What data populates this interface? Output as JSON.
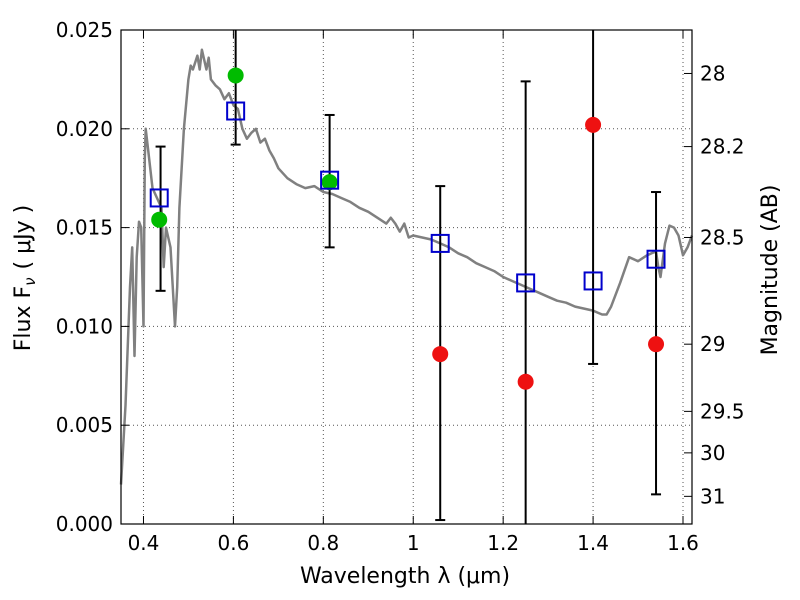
{
  "chart_data": {
    "type": "scatter",
    "xlabel": "Wavelength  λ (μm)",
    "ylabel": "Flux  F",
    "ylabel_sub": "ν",
    "ylabel_unit": "( μJy )",
    "y2label": "Magnitude (AB)",
    "xlim": [
      0.35,
      1.62
    ],
    "ylim": [
      0.0,
      0.025
    ],
    "grid": true,
    "x_ticks": [
      0.4,
      0.6,
      0.8,
      1.0,
      1.2,
      1.4,
      1.6
    ],
    "x_tick_labels": [
      "0.4",
      "0.6",
      "0.8",
      "1",
      "1.2",
      "1.4",
      "1.6"
    ],
    "y_ticks": [
      0.0,
      0.005,
      0.01,
      0.015,
      0.02,
      0.025
    ],
    "y_tick_labels": [
      "0.000",
      "0.005",
      "0.010",
      "0.015",
      "0.020",
      "0.025"
    ],
    "y2_tick_flux": [
      0.0228,
      0.0191,
      0.0145,
      0.0091,
      0.0057,
      0.0036,
      0.0014
    ],
    "y2_tick_labels": [
      "28",
      "28.2",
      "28.5",
      "29",
      "29.5",
      "30",
      "31"
    ],
    "colors": {
      "spectrum": "#808080",
      "model_box": "#0000cc",
      "detection": "#00bb00",
      "upper_limit": "#ee1111",
      "error_bar": "#000000",
      "grid": "#555555"
    },
    "series": [
      {
        "kind": "template-spectrum",
        "x": [
          0.35,
          0.36,
          0.37,
          0.375,
          0.38,
          0.385,
          0.39,
          0.395,
          0.4,
          0.403,
          0.405,
          0.41,
          0.42,
          0.43,
          0.44,
          0.445,
          0.45,
          0.46,
          0.47,
          0.475,
          0.48,
          0.49,
          0.5,
          0.505,
          0.51,
          0.52,
          0.525,
          0.53,
          0.54,
          0.545,
          0.55,
          0.56,
          0.57,
          0.58,
          0.59,
          0.6,
          0.61,
          0.62,
          0.63,
          0.64,
          0.65,
          0.66,
          0.67,
          0.68,
          0.69,
          0.7,
          0.72,
          0.74,
          0.76,
          0.78,
          0.8,
          0.82,
          0.84,
          0.86,
          0.88,
          0.9,
          0.92,
          0.94,
          0.95,
          0.96,
          0.97,
          0.98,
          0.99,
          1.0,
          1.02,
          1.04,
          1.06,
          1.08,
          1.1,
          1.12,
          1.14,
          1.16,
          1.18,
          1.2,
          1.22,
          1.24,
          1.26,
          1.28,
          1.3,
          1.32,
          1.34,
          1.36,
          1.38,
          1.4,
          1.41,
          1.42,
          1.43,
          1.44,
          1.46,
          1.48,
          1.5,
          1.52,
          1.54,
          1.545,
          1.55,
          1.56,
          1.57,
          1.58,
          1.59,
          1.6,
          1.61,
          1.62
        ],
        "y": [
          0.002,
          0.006,
          0.012,
          0.014,
          0.0085,
          0.0135,
          0.0153,
          0.015,
          0.01,
          0.0185,
          0.02,
          0.019,
          0.017,
          0.0165,
          0.016,
          0.013,
          0.015,
          0.014,
          0.01,
          0.012,
          0.016,
          0.02,
          0.0225,
          0.0232,
          0.023,
          0.0237,
          0.023,
          0.024,
          0.023,
          0.0236,
          0.0225,
          0.0222,
          0.022,
          0.0215,
          0.0218,
          0.0212,
          0.021,
          0.02,
          0.0195,
          0.0198,
          0.02,
          0.0193,
          0.0195,
          0.0189,
          0.0185,
          0.018,
          0.0175,
          0.0172,
          0.017,
          0.0171,
          0.0168,
          0.0167,
          0.0165,
          0.0163,
          0.016,
          0.0158,
          0.0155,
          0.0152,
          0.0155,
          0.0152,
          0.0148,
          0.0152,
          0.0145,
          0.0146,
          0.0145,
          0.0144,
          0.0142,
          0.014,
          0.0137,
          0.0135,
          0.0132,
          0.013,
          0.0128,
          0.0125,
          0.0123,
          0.0121,
          0.0119,
          0.0117,
          0.0115,
          0.0113,
          0.0112,
          0.011,
          0.0109,
          0.0108,
          0.0107,
          0.0106,
          0.0106,
          0.011,
          0.0122,
          0.0135,
          0.0133,
          0.0136,
          0.0138,
          0.013,
          0.0125,
          0.0142,
          0.0151,
          0.015,
          0.0146,
          0.0136,
          0.014,
          0.0146
        ]
      },
      {
        "kind": "model-photometry",
        "marker": "open-square",
        "x": [
          0.435,
          0.605,
          0.814,
          1.06,
          1.25,
          1.4,
          1.54
        ],
        "y": [
          0.0165,
          0.0209,
          0.0174,
          0.0142,
          0.0122,
          0.0123,
          0.0134
        ]
      },
      {
        "kind": "detections",
        "marker": "green-circle",
        "x": [
          0.435,
          0.605,
          0.814
        ],
        "y": [
          0.0154,
          0.0227,
          0.0173
        ]
      },
      {
        "kind": "non-detections",
        "marker": "red-circle",
        "x": [
          1.06,
          1.25,
          1.4,
          1.54
        ],
        "y": [
          0.0086,
          0.0072,
          0.0202,
          0.0091
        ]
      },
      {
        "kind": "error-bars",
        "x": [
          0.438,
          0.605,
          0.814,
          1.06,
          1.25,
          1.4,
          1.54
        ],
        "lo": [
          0.0118,
          0.0192,
          0.014,
          0.0002,
          0.0,
          0.0081,
          0.0015
        ],
        "hi": [
          0.0191,
          0.026,
          0.0207,
          0.0171,
          0.0224,
          0.026,
          0.0168
        ],
        "caps_lo": [
          true,
          true,
          true,
          true,
          false,
          true,
          true
        ],
        "caps_hi": [
          true,
          false,
          true,
          true,
          true,
          false,
          true
        ]
      }
    ]
  }
}
